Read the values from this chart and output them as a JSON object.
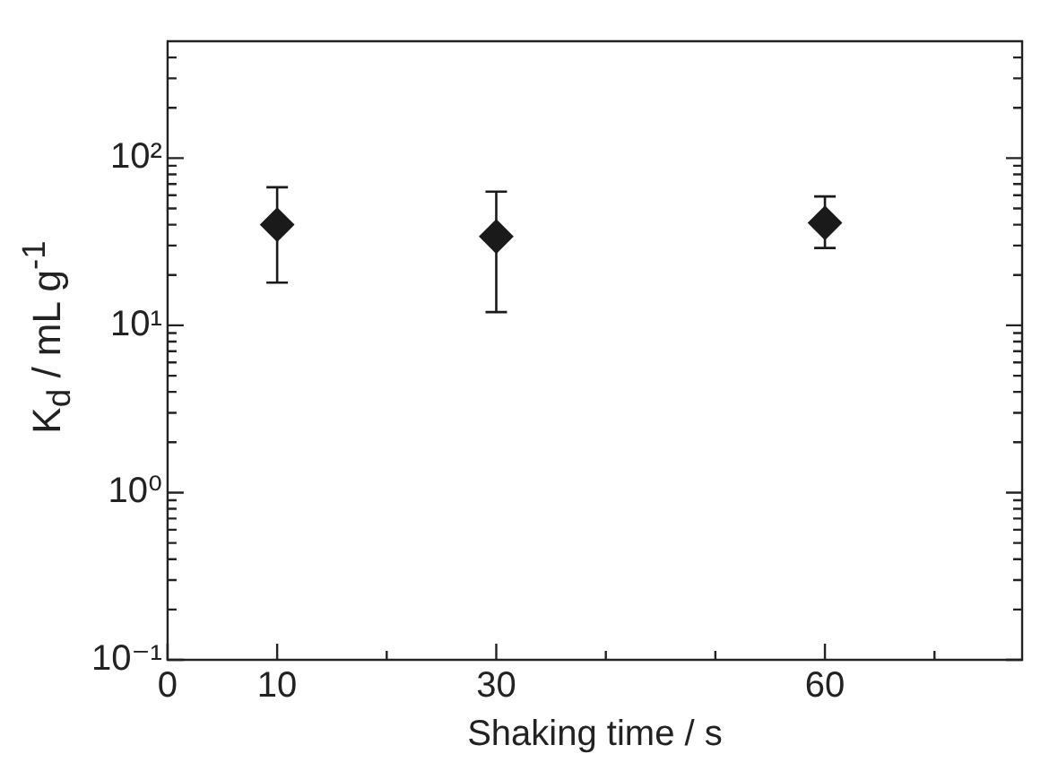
{
  "chart_data": {
    "type": "scatter",
    "xlabel": "Shaking time / s",
    "ylabel": "K$_{d}$ / mL g$^{-1}$",
    "x": [
      10,
      30,
      60
    ],
    "series": [
      {
        "color": "#1a1a1a",
        "values": [
          40,
          34,
          41
        ],
        "errors": [
          [
            18,
            67
          ],
          [
            12,
            63
          ],
          [
            29,
            59
          ]
        ]
      }
    ],
    "xlim": [
      0,
      78
    ],
    "xticks": [
      0,
      10,
      {
        "value": 20,
        "label": null
      },
      30,
      {
        "value": 40,
        "label": null
      },
      {
        "value": 50,
        "label": null
      },
      60,
      {
        "value": 70,
        "label": null
      }
    ],
    "log": true,
    "ylim": [
      0.1,
      500
    ],
    "yticks": [
      {
        "value": 0.1,
        "label": "10⁻¹"
      },
      {
        "value": 0.2,
        "label": null
      },
      {
        "value": 0.3,
        "label": null
      },
      {
        "value": 0.4,
        "label": null
      },
      {
        "value": 0.5,
        "label": null
      },
      {
        "value": 0.6,
        "label": null
      },
      {
        "value": 0.7,
        "label": null
      },
      {
        "value": 0.8,
        "label": null
      },
      {
        "value": 0.9,
        "label": null
      },
      {
        "value": 1,
        "label": "10⁰"
      },
      {
        "value": 2,
        "label": null
      },
      {
        "value": 3,
        "label": null
      },
      {
        "value": 4,
        "label": null
      },
      {
        "value": 5,
        "label": null
      },
      {
        "value": 6,
        "label": null
      },
      {
        "value": 7,
        "label": null
      },
      {
        "value": 8,
        "label": null
      },
      {
        "value": 9,
        "label": null
      },
      {
        "value": 10,
        "label": "10¹"
      },
      {
        "value": 20,
        "label": null
      },
      {
        "value": 30,
        "label": null
      },
      {
        "value": 40,
        "label": null
      },
      {
        "value": 50,
        "label": null
      },
      {
        "value": 60,
        "label": null
      },
      {
        "value": 70,
        "label": null
      },
      {
        "value": 80,
        "label": null
      },
      {
        "value": 90,
        "label": null
      },
      {
        "value": 100,
        "label": "10²"
      },
      {
        "value": 200,
        "label": null
      },
      {
        "value": 300,
        "label": null
      },
      {
        "value": 400,
        "label": null
      }
    ],
    "marker": "diamond",
    "grid": false,
    "legend": false
  }
}
